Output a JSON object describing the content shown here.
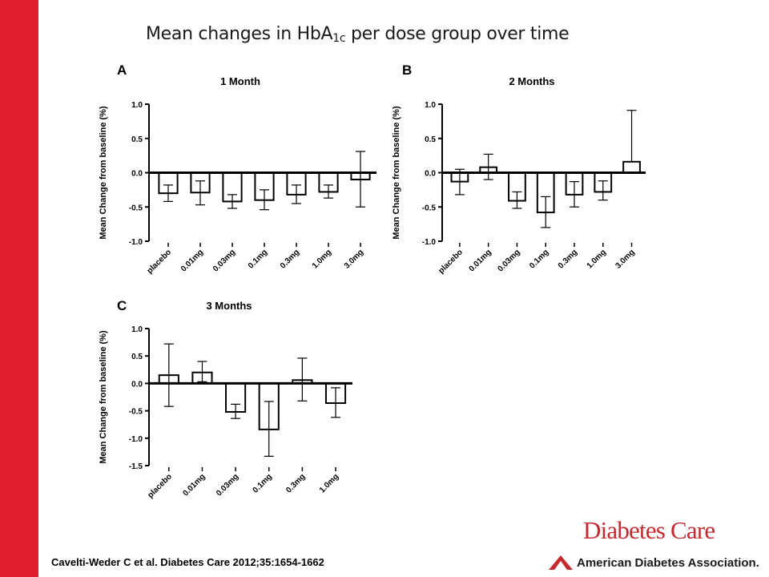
{
  "slide": {
    "title_main": "Mean changes in HbA",
    "title_sub": "1c",
    "title_rest": " per dose group over time",
    "citation": "Cavelti-Weder C et al. Diabetes Care 2012;35:1654-1662",
    "journal_logo": "Diabetes Care",
    "association_logo": "American Diabetes Association.",
    "accent_color": "#e0202e"
  },
  "chart_data": [
    {
      "panel": "A",
      "type": "bar",
      "title": "1 Month",
      "ylabel": "Mean Change from baseline (%)",
      "ylim": [
        -1.0,
        1.0
      ],
      "yticks": [
        1.0,
        0.5,
        0.0,
        -0.5,
        -1.0
      ],
      "ytick_labels": [
        "1.0",
        "0.5",
        "0.0",
        "-0.5",
        "-1.0"
      ],
      "categories": [
        "placebo",
        "0.01mg",
        "0.03mg",
        "0.1mg",
        "0.3mg",
        "1.0mg",
        "3.0mg"
      ],
      "values": [
        -0.3,
        -0.29,
        -0.42,
        -0.4,
        -0.32,
        -0.28,
        -0.1
      ],
      "err_low": [
        -0.42,
        -0.47,
        -0.52,
        -0.54,
        -0.45,
        -0.37,
        -0.5
      ],
      "err_high": [
        -0.18,
        -0.12,
        -0.32,
        -0.25,
        -0.18,
        -0.18,
        0.31
      ]
    },
    {
      "panel": "B",
      "type": "bar",
      "title": "2 Months",
      "ylabel": "Mean Change from baseline (%)",
      "ylim": [
        -1.0,
        1.0
      ],
      "yticks": [
        1.0,
        0.5,
        0.0,
        -0.5,
        -1.0
      ],
      "ytick_labels": [
        "1.0",
        "0.5",
        "0.0",
        "-0.5",
        "-1.0"
      ],
      "categories": [
        "placebo",
        "0.01mg",
        "0.03mg",
        "0.1mg",
        "0.3mg",
        "1.0mg",
        "3.0mg"
      ],
      "values": [
        -0.13,
        0.08,
        -0.41,
        -0.58,
        -0.32,
        -0.28,
        0.16
      ],
      "err_low": [
        -0.32,
        -0.1,
        -0.52,
        -0.8,
        -0.5,
        -0.4,
        0.16
      ],
      "err_high": [
        0.05,
        0.27,
        -0.28,
        -0.35,
        -0.13,
        -0.12,
        0.91
      ]
    },
    {
      "panel": "C",
      "type": "bar",
      "title": "3 Months",
      "ylabel": "Mean Change from baseline (%)",
      "ylim": [
        -1.5,
        1.0
      ],
      "yticks": [
        1.0,
        0.5,
        0.0,
        -0.5,
        -1.0,
        -1.5
      ],
      "ytick_labels": [
        "1.0",
        "0.5",
        "0.0",
        "-0.5",
        "-1.0",
        "-1.5"
      ],
      "categories": [
        "placebo",
        "0.01mg",
        "0.03mg",
        "0.1mg",
        "0.3mg",
        "1.0mg"
      ],
      "values": [
        0.15,
        0.2,
        -0.52,
        -0.84,
        0.06,
        -0.36
      ],
      "err_low": [
        -0.42,
        0.03,
        -0.64,
        -1.33,
        -0.32,
        -0.62
      ],
      "err_high": [
        0.72,
        0.4,
        -0.38,
        -0.33,
        0.46,
        -0.08
      ]
    }
  ]
}
